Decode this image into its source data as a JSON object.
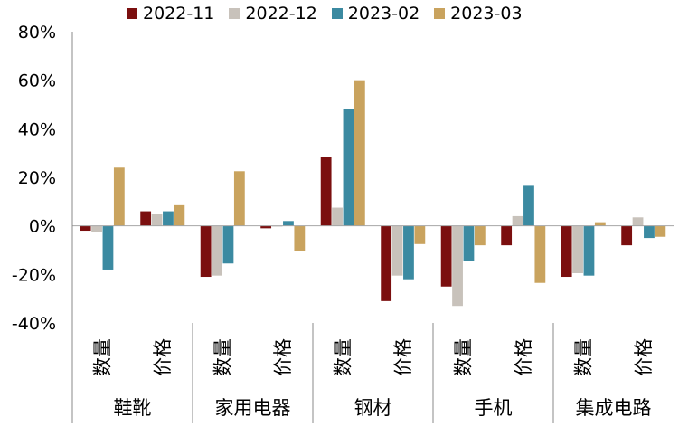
{
  "chart_data": {
    "type": "bar",
    "title": "",
    "xlabel": "",
    "ylabel": "",
    "ylim": [
      -40,
      80
    ],
    "yticks": [
      -40,
      -20,
      0,
      20,
      40,
      60,
      80
    ],
    "ytick_labels": [
      "-40%",
      "-20%",
      "0%",
      "20%",
      "40%",
      "60%",
      "80%"
    ],
    "groups": [
      "鞋靴",
      "家用电器",
      "钢材",
      "手机",
      "集成电路"
    ],
    "subcategories": [
      "数量",
      "价格"
    ],
    "categories": [
      "鞋靴-数量",
      "鞋靴-价格",
      "家用电器-数量",
      "家用电器-价格",
      "钢材-数量",
      "钢材-价格",
      "手机-数量",
      "手机-价格",
      "集成电路-数量",
      "集成电路-价格"
    ],
    "series": [
      {
        "name": "2022-11",
        "color": "#7b0f0f",
        "values": [
          -2,
          6,
          -21,
          -1,
          28.5,
          -31,
          -25,
          -8,
          -21,
          -8
        ]
      },
      {
        "name": "2022-12",
        "color": "#c8c2bb",
        "values": [
          -2.5,
          5,
          -20.5,
          0,
          7.5,
          -20.5,
          -33,
          4,
          -19.5,
          3.5
        ]
      },
      {
        "name": "2023-02",
        "color": "#3b8aa1",
        "values": [
          -18,
          6,
          -15.5,
          2,
          48,
          -22,
          -14.5,
          16.5,
          -20.5,
          -5
        ]
      },
      {
        "name": "2023-03",
        "color": "#c9a35e",
        "values": [
          24,
          8.5,
          22.5,
          -10.5,
          60,
          -7.5,
          -8,
          -23.5,
          1.5,
          -4.5
        ]
      }
    ],
    "grid": false,
    "legend_position": "top"
  }
}
